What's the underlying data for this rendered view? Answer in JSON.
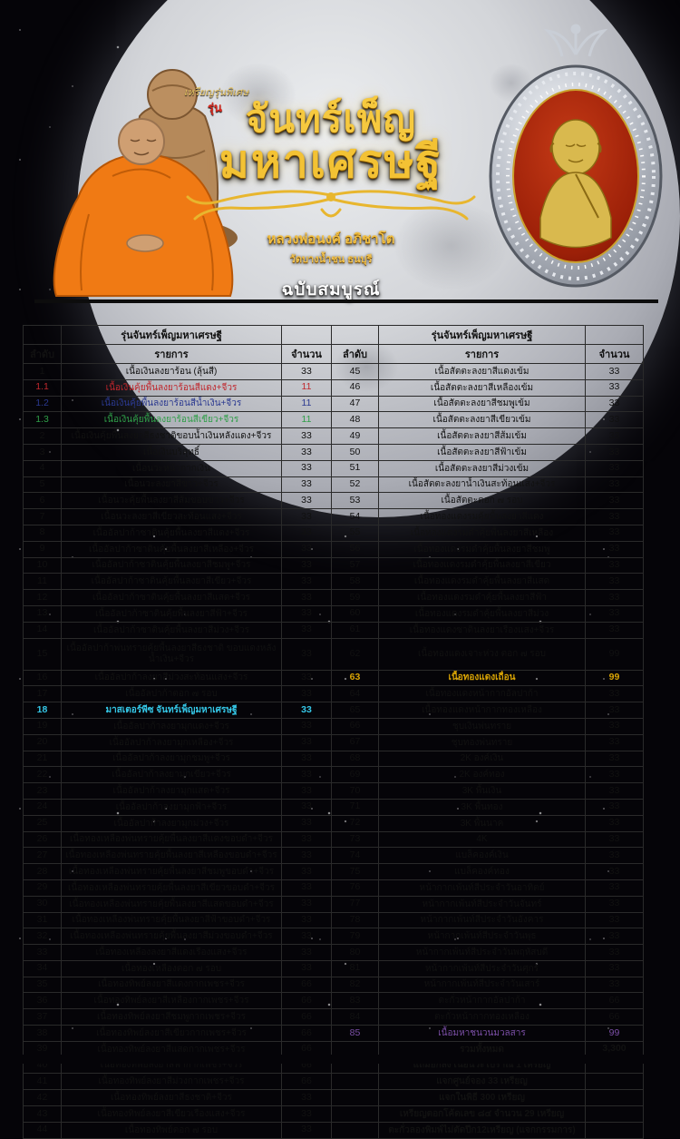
{
  "header": {
    "badge_small": "เหรียญรุ่นพิเศษ",
    "run_label": "รุ่น",
    "title_line1": "จันทร์เพ็ญ",
    "title_line2": "มหาเศรษฐี",
    "monk_name": "หลวงพ่อนงค์ อภิชาโต",
    "temple": "วัดบางน้ำชน ธนบุรี",
    "edition": "ฉบับสมบูรณ์"
  },
  "table": {
    "group_header": "รุ่นจันทร์เพ็ญมหาเศรษฐี",
    "columns": {
      "no": "ลำดับ",
      "item": "รายการ",
      "qty": "จำนวน"
    },
    "colors": {
      "red": "#c0272d",
      "blue": "#2b3990",
      "green": "#2f9e48",
      "cyan": "#35c8e8",
      "gold": "#d9a404",
      "purple": "#7b4fa6"
    },
    "rows": [
      {
        "l": {
          "no": "1",
          "item": "เนื้อเงินลงยาร้อน (ลุ้นสี)",
          "qty": "33"
        },
        "r": {
          "no": "45",
          "item": "เนื้อสัตตะลงยาสีแดงเข้ม",
          "qty": "33"
        }
      },
      {
        "l": {
          "no": "1.1",
          "item": "เนื้อเงินคุ้ยพื้นลงยาร้อนสีแดง+จีวร",
          "qty": "11",
          "color": "red"
        },
        "r": {
          "no": "46",
          "item": "เนื้อสัตตะลงยาสีเหลืองเข้ม",
          "qty": "33"
        }
      },
      {
        "l": {
          "no": "1.2",
          "item": "เนื้อเงินคุ้ยพื้นลงยาร้อนสีน้ำเงิน+จีวร",
          "qty": "11",
          "color": "blue"
        },
        "r": {
          "no": "47",
          "item": "เนื้อสัตตะลงยาสีชมพูเข้ม",
          "qty": "33"
        }
      },
      {
        "l": {
          "no": "1.3",
          "item": "เนื้อเงินคุ้ยพื้นลงยาร้อนสีเขียว+จีวร",
          "qty": "11",
          "color": "green"
        },
        "r": {
          "no": "48",
          "item": "เนื้อสัตตะลงยาสีเขียวเข้ม",
          "qty": "33"
        }
      },
      {
        "l": {
          "no": "2",
          "item": "เนื้อเงินคุ้ยพื้นลงยาสีธงชาติขอบน้ำเงินหลังแดง+จีวร",
          "qty": "33"
        },
        "r": {
          "no": "49",
          "item": "เนื้อสัตตะลงยาสีส้มเข้ม",
          "qty": "33"
        }
      },
      {
        "l": {
          "no": "3",
          "item": "เนื้อเงินบริสุทธิ์",
          "qty": "33"
        },
        "r": {
          "no": "50",
          "item": "เนื้อสัตตะลงยาสีฟ้าเข้ม",
          "qty": "33"
        }
      },
      {
        "l": {
          "no": "4",
          "item": "เนื้อนวะหน้ากากเงิน",
          "qty": "33"
        },
        "r": {
          "no": "51",
          "item": "เนื้อสัตตะลงยาสีม่วงเข้ม",
          "qty": "33"
        }
      },
      {
        "l": {
          "no": "5",
          "item": "เนื้อนวะลงยาสีขาว+จีวร",
          "qty": "33"
        },
        "r": {
          "no": "52",
          "item": "เนื้อสัตตะลงยาน้ำเงินสะท้อนแสง+จีวร",
          "qty": "33"
        }
      },
      {
        "l": {
          "no": "6",
          "item": "เนื้อนวะคุ้ยพื้นลงยาสีส้มขอบขาว+จีวร",
          "qty": "33"
        },
        "r": {
          "no": "53",
          "item": "เนื้อสัตตะตอก ๗ รอบ",
          "qty": "33"
        }
      },
      {
        "l": {
          "no": "7",
          "item": "เนื้อนวะลงยาสีเขียวสะท้อนแสง+จีวร",
          "qty": "33"
        },
        "r": {
          "no": "54",
          "item": "เนื้อทองแดงรมคุ้ยพื้นลงยาสีแดง",
          "qty": "33"
        }
      },
      {
        "l": {
          "no": "8",
          "item": "เนื้ออัลปาก้าซาตินคุ้ยพื้นลงยาสีแดง+จีวร",
          "qty": "33"
        },
        "r": {
          "no": "55",
          "item": "เนื้อทองแดงรมดำคุ้ยพื้นลงยาสีเหลือง",
          "qty": "33"
        }
      },
      {
        "l": {
          "no": "9",
          "item": "เนื้ออัลปาก้าซาตินคุ้ยพื้นลงยาสีเหลือง+จีวร",
          "qty": "33"
        },
        "r": {
          "no": "56",
          "item": "เนื้อทองแดงรมดำคุ้ยพื้นลงยาสีชมพู",
          "qty": "33"
        }
      },
      {
        "l": {
          "no": "10",
          "item": "เนื้ออัลปาก้าซาตินคุ้ยพื้นลงยาสีชมพู+จีวร",
          "qty": "33"
        },
        "r": {
          "no": "57",
          "item": "เนื้อทองแดงรมดำคุ้ยพื้นลงยาสีเขียว",
          "qty": "33"
        }
      },
      {
        "l": {
          "no": "11",
          "item": "เนื้ออัลปาก้าซาตินคุ้ยพื้นลงยาสีเขียว+จีวร",
          "qty": "33"
        },
        "r": {
          "no": "58",
          "item": "เนื้อทองแดงรมดำคุ้ยพื้นลงยาสีแสด",
          "qty": "33"
        }
      },
      {
        "l": {
          "no": "12",
          "item": "เนื้ออัลปาก้าซาตินคุ้ยพื้นลงยาสีแสด+จีวร",
          "qty": "33"
        },
        "r": {
          "no": "59",
          "item": "เนื้อทองแดงรมดำคุ้ยพื้นลงยาสีฟ้า",
          "qty": "33"
        }
      },
      {
        "l": {
          "no": "13",
          "item": "เนื้ออัลปาก้าซาตินคุ้ยพื้นลงยาสีฟ้า+จีวร",
          "qty": "33"
        },
        "r": {
          "no": "60",
          "item": "เนื้อทองแดงรมดำคุ้ยพื้นลงยาสีม่วง",
          "qty": "33"
        }
      },
      {
        "l": {
          "no": "14",
          "item": "เนื้ออัลปาก้าซาตินคุ้ยพื้นลงยาสีม่วง+จีวร",
          "qty": "33"
        },
        "r": {
          "no": "61",
          "item": "เนื้อทองแดงซาตินลงยาเรืองแสง+จีวร",
          "qty": "33"
        }
      },
      {
        "tall": true,
        "l": {
          "no": "15",
          "item": "เนื้ออัลปาก้าพ่นทรายคุ้ยพื้นลงยาสีธงชาติ ขอบแดงหลังน้ำเงิน+จีวร",
          "qty": "33"
        },
        "r": {
          "no": "62",
          "item": "เนื้อทองแดงเจาะห่วง ตอก ๗ รอบ",
          "qty": "99"
        }
      },
      {
        "l": {
          "no": "16",
          "item": "เนื้ออัลปาก้าลงยาสีม่วงสะท้อนแสง+จีวร",
          "qty": "33"
        },
        "r": {
          "no": "63",
          "item": "เนื้อทองแดงเถื่อน",
          "qty": "99",
          "color": "gold",
          "bold": true
        }
      },
      {
        "l": {
          "no": "17",
          "item": "เนื้ออัลปาก้าตอก ๗ รอบ",
          "qty": "33"
        },
        "r": {
          "no": "64",
          "item": "เนื้อทองแดงหน้ากากอัลปาก้า",
          "qty": "33"
        }
      },
      {
        "l": {
          "no": "18",
          "item": "มาสเตอร์พีซ จันทร์เพ็ญมหาเศรษฐี",
          "qty": "33",
          "color": "cyan",
          "bold": true
        },
        "r": {
          "no": "65",
          "item": "เนื้อทองแดงหน้ากากทองเหลือง",
          "qty": "33"
        }
      },
      {
        "l": {
          "no": "19",
          "item": "เนื้ออัลปาก้าลงยามุกแดง+จีวร",
          "qty": "33"
        },
        "r": {
          "no": "66",
          "item": "ชุบเงินพ่นทราย",
          "qty": "33"
        }
      },
      {
        "l": {
          "no": "20",
          "item": "เนื้ออัลปาก้าลงยามุกเหลือง+จีวร",
          "qty": "33"
        },
        "r": {
          "no": "67",
          "item": "ชุบทองพ่นทราย",
          "qty": "33"
        }
      },
      {
        "l": {
          "no": "21",
          "item": "เนื้ออัลปาก้าลงยามุกชมพู+จีวร",
          "qty": "33"
        },
        "r": {
          "no": "68",
          "item": "2K องค์เงิน",
          "qty": "33"
        }
      },
      {
        "l": {
          "no": "22",
          "item": "เนื้ออัลปาก้าลงยามุกเขียว+จีวร",
          "qty": "33"
        },
        "r": {
          "no": "69",
          "item": "2K องค์ทอง",
          "qty": "33"
        }
      },
      {
        "l": {
          "no": "23",
          "item": "เนื้ออัลปาก้าลงยามุกแสด+จีวร",
          "qty": "33"
        },
        "r": {
          "no": "70",
          "item": "3K พื้นเงิน",
          "qty": "33"
        }
      },
      {
        "l": {
          "no": "24",
          "item": "เนื้ออัลปาก้าลงยามุกฟ้า+จีวร",
          "qty": "33"
        },
        "r": {
          "no": "71",
          "item": "3K พื้นทอง",
          "qty": "33"
        }
      },
      {
        "l": {
          "no": "25",
          "item": "เนื้ออัลปาก้าลงยามุกม่วง+จีวร",
          "qty": "33"
        },
        "r": {
          "no": "72",
          "item": "3K พื้นนาค",
          "qty": "33"
        }
      },
      {
        "l": {
          "no": "26",
          "item": "เนื้อทองเหลืองพ่นทรายคุ้ยพื้นลงยาสีแดงขอบดำ+จีวร",
          "qty": "33"
        },
        "r": {
          "no": "73",
          "item": "4K",
          "qty": "33"
        }
      },
      {
        "l": {
          "no": "27",
          "item": "เนื้อทองเหลืองพ่นทรายคุ้ยพื้นลงยาสีเหลืองขอบดำ+จีวร",
          "qty": "33"
        },
        "r": {
          "no": "74",
          "item": "แบล็คองค์เงิน",
          "qty": "33"
        }
      },
      {
        "l": {
          "no": "28",
          "item": "เนื้อทองเหลืองพ่นทรายคุ้ยพื้นลงยาสีชมพูขอบดำ+จีวร",
          "qty": "33"
        },
        "r": {
          "no": "75",
          "item": "แบล็คองค์ทอง",
          "qty": "33"
        }
      },
      {
        "l": {
          "no": "29",
          "item": "เนื้อทองเหลืองพ่นทรายคุ้ยพื้นลงยาสีเขียวขอบดำ+จีวร",
          "qty": "33"
        },
        "r": {
          "no": "76",
          "item": "หน้ากากเพ้นท์สีประจำวันอาทิตย์",
          "qty": "33"
        }
      },
      {
        "l": {
          "no": "30",
          "item": "เนื้อทองเหลืองพ่นทรายคุ้ยพื้นลงยาสีแสดขอบดำ+จีวร",
          "qty": "33"
        },
        "r": {
          "no": "77",
          "item": "หน้ากากเพ้นท์สีประจำวันจันทร์",
          "qty": "33"
        }
      },
      {
        "l": {
          "no": "31",
          "item": "เนื้อทองเหลืองพ่นทรายคุ้ยพื้นลงยาสีฟ้าขอบดำ+จีวร",
          "qty": "33"
        },
        "r": {
          "no": "78",
          "item": "หน้ากากเพ้นท์สีประจำวันอังคาร",
          "qty": "33"
        }
      },
      {
        "l": {
          "no": "32",
          "item": "เนื้อทองเหลืองพ่นทรายคุ้ยพื้นลงยาสีม่วงขอบดำ+จีวร",
          "qty": "33"
        },
        "r": {
          "no": "79",
          "item": "หน้ากากเพ้นท์สีประจำวันพุธ",
          "qty": "33"
        }
      },
      {
        "l": {
          "no": "33",
          "item": "เนื้อทองเหลืองลงยาสีแดงเรืองแสง+จีวร",
          "qty": "33"
        },
        "r": {
          "no": "80",
          "item": "หน้ากากเพ้นท์สีประจำวันพฤหัสบดี",
          "qty": "33"
        }
      },
      {
        "l": {
          "no": "34",
          "item": "เนื้อทองเหลืองตอก ๗ รอบ",
          "qty": "33"
        },
        "r": {
          "no": "81",
          "item": "หน้ากากเพ้นท์สีประจำวันศุกร์",
          "qty": "33"
        }
      },
      {
        "l": {
          "no": "35",
          "item": "เนื้อทองทิพย์ลงยาสีแดงกากเพชร+จีวร",
          "qty": "66"
        },
        "r": {
          "no": "82",
          "item": "หน้ากากเพ้นท์สีประจำวันเสาร์",
          "qty": "33"
        }
      },
      {
        "l": {
          "no": "36",
          "item": "เนื้อทองทิพย์ลงยาสีเหลืองกากเพชร+จีวร",
          "qty": "66"
        },
        "r": {
          "no": "83",
          "item": "ตะกั่วหน้ากากอัลปาก้า",
          "qty": "66"
        }
      },
      {
        "l": {
          "no": "37",
          "item": "เนื้อทองทิพย์ลงยาสีชมพูกากเพชร+จีวร",
          "qty": "66"
        },
        "r": {
          "no": "84",
          "item": "ตะกั่วหน้ากากทองเหลือง",
          "qty": "66"
        }
      },
      {
        "l": {
          "no": "38",
          "item": "เนื้อทองทิพย์ลงยาสีเขียวกากเพชร+จีวร",
          "qty": "66"
        },
        "r": {
          "no": "85",
          "item": "เนื้อมหาชนวนมวลสาร",
          "qty": "99",
          "color": "purple"
        }
      },
      {
        "l": {
          "no": "39",
          "item": "เนื้อทองทิพย์ลงยาสีแสดกากเพชร+จีวร",
          "qty": "66"
        },
        "r": {
          "no": "",
          "item": "รวมทั้งหมด",
          "qty": "3,300",
          "bold": true
        }
      },
      {
        "l": {
          "no": "40",
          "item": "เนื้อทองทิพย์ลงยาสีฟ้ากากเพชร+จีวร",
          "qty": "66"
        },
        "r": {
          "no": "",
          "item": "แถมยกลัง เนื้อนวะโบราณ 1 เหรียญ",
          "qty": "",
          "bold": true,
          "left": true
        }
      },
      {
        "l": {
          "no": "41",
          "item": "เนื้อทองทิพย์ลงยาสีม่วงกากเพชร+จีวร",
          "qty": "66"
        },
        "r": {
          "no": "",
          "item": "แจกศูนย์จอง 33 เหรียญ",
          "qty": "",
          "bold": true,
          "left": true
        }
      },
      {
        "l": {
          "no": "42",
          "item": "เนื้อทองทิพย์ลงยาสีธงชาติ+จีวร",
          "qty": "33"
        },
        "r": {
          "no": "",
          "item": "แจกในพิธี 300 เหรียญ",
          "qty": "",
          "bold": true,
          "left": true
        }
      },
      {
        "l": {
          "no": "43",
          "item": "เนื้อทองทิพย์ลงยาสีเขียวเรืองแสง+จีวร",
          "qty": "33"
        },
        "r": {
          "no": "",
          "item": "เหรียญตอกโค้ดเลข ๘๔ จำนวน 29 เหรียญ",
          "qty": "",
          "bold": true,
          "left": true
        }
      },
      {
        "l": {
          "no": "44",
          "item": "เนื้อทองทิพย์ตอก ๗ รอบ",
          "qty": "33"
        },
        "r": {
          "no": "",
          "item": "ตะกั่วลองพิมพ์ไม่ตัดปีก12เหรียญ (แจกกรรมการ)",
          "qty": "",
          "bold": true,
          "left": true
        }
      }
    ]
  }
}
